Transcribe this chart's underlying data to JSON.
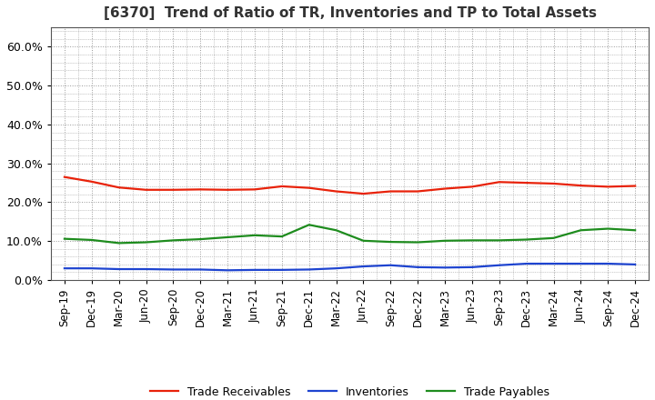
{
  "title": "[6370]  Trend of Ratio of TR, Inventories and TP to Total Assets",
  "x_labels": [
    "Sep-19",
    "Dec-19",
    "Mar-20",
    "Jun-20",
    "Sep-20",
    "Dec-20",
    "Mar-21",
    "Jun-21",
    "Sep-21",
    "Dec-21",
    "Mar-22",
    "Jun-22",
    "Sep-22",
    "Dec-22",
    "Mar-23",
    "Jun-23",
    "Sep-23",
    "Dec-23",
    "Mar-24",
    "Jun-24",
    "Sep-24",
    "Dec-24"
  ],
  "trade_receivables": [
    0.265,
    0.253,
    0.238,
    0.232,
    0.232,
    0.233,
    0.232,
    0.233,
    0.241,
    0.237,
    0.228,
    0.222,
    0.228,
    0.228,
    0.235,
    0.24,
    0.252,
    0.25,
    0.248,
    0.243,
    0.24,
    0.242
  ],
  "inventories": [
    0.03,
    0.03,
    0.028,
    0.028,
    0.027,
    0.027,
    0.025,
    0.026,
    0.026,
    0.027,
    0.03,
    0.035,
    0.038,
    0.033,
    0.032,
    0.033,
    0.038,
    0.042,
    0.042,
    0.042,
    0.042,
    0.04
  ],
  "trade_payables": [
    0.106,
    0.103,
    0.095,
    0.097,
    0.102,
    0.105,
    0.11,
    0.115,
    0.112,
    0.142,
    0.128,
    0.101,
    0.098,
    0.097,
    0.101,
    0.102,
    0.102,
    0.104,
    0.108,
    0.128,
    0.132,
    0.128
  ],
  "tr_color": "#e8220a",
  "inv_color": "#1e44d0",
  "tp_color": "#1e8c1e",
  "ylim": [
    0.0,
    0.65
  ],
  "yticks": [
    0.0,
    0.1,
    0.2,
    0.3,
    0.4,
    0.5,
    0.6
  ],
  "ytick_labels": [
    "0.0%",
    "10.0%",
    "20.0%",
    "30.0%",
    "40.0%",
    "50.0%",
    "60.0%"
  ],
  "legend_labels": [
    "Trade Receivables",
    "Inventories",
    "Trade Payables"
  ],
  "background_color": "#ffffff",
  "grid_color": "#999999",
  "title_color": "#333333",
  "line_width": 1.6,
  "title_fontsize": 11,
  "tick_fontsize": 8.5
}
